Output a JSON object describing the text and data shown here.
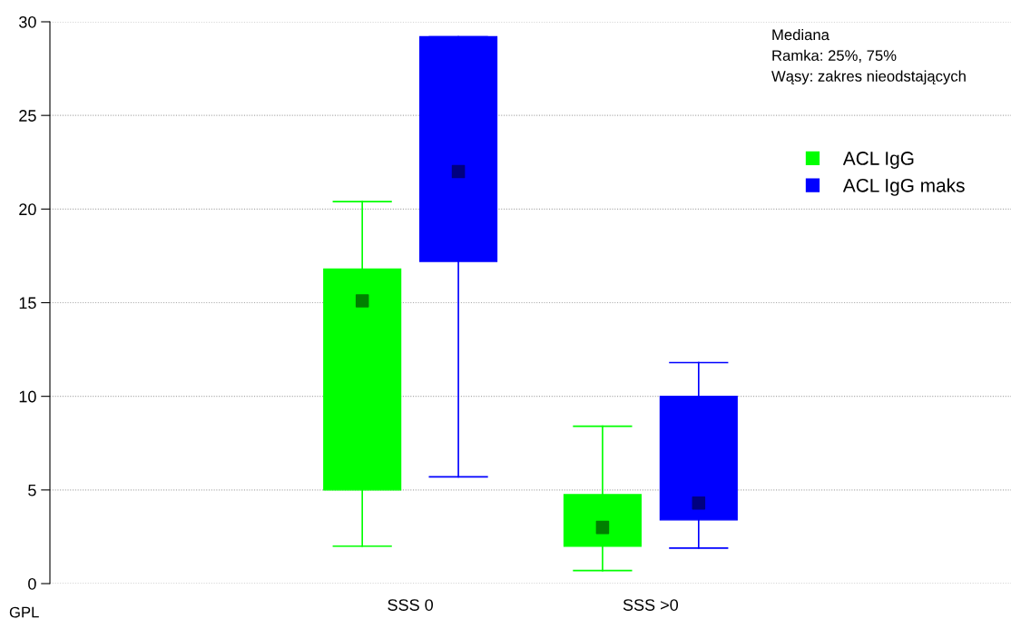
{
  "chart_data": {
    "type": "box",
    "ylabel": "GPL",
    "categories": [
      "SSS 0",
      "SSS >0"
    ],
    "series": [
      {
        "name": "ACL IgG",
        "color": "#00ff00",
        "boxes": [
          {
            "low": 2.0,
            "q1": 5.0,
            "median": 15.1,
            "q3": 16.8,
            "high": 20.4
          },
          {
            "low": 0.7,
            "q1": 2.0,
            "median": 3.0,
            "q3": 4.75,
            "high": 8.4
          }
        ]
      },
      {
        "name": "ACL IgG maks",
        "color": "#0000ff",
        "boxes": [
          {
            "low": 5.7,
            "q1": 17.2,
            "median": 22.0,
            "q3": 29.2,
            "high": 29.2
          },
          {
            "low": 1.9,
            "q1": 3.4,
            "median": 4.3,
            "q3": 10.0,
            "high": 11.8
          }
        ]
      }
    ],
    "ylim": [
      0,
      30
    ],
    "yticks": [
      0,
      5,
      10,
      15,
      20,
      25,
      30
    ],
    "grid": "y",
    "legend": "top right",
    "marker": "square",
    "annotations": [
      "Mediana",
      "Ramka: 25%, 75%",
      "Wąsy: zakres nieodstających"
    ]
  }
}
